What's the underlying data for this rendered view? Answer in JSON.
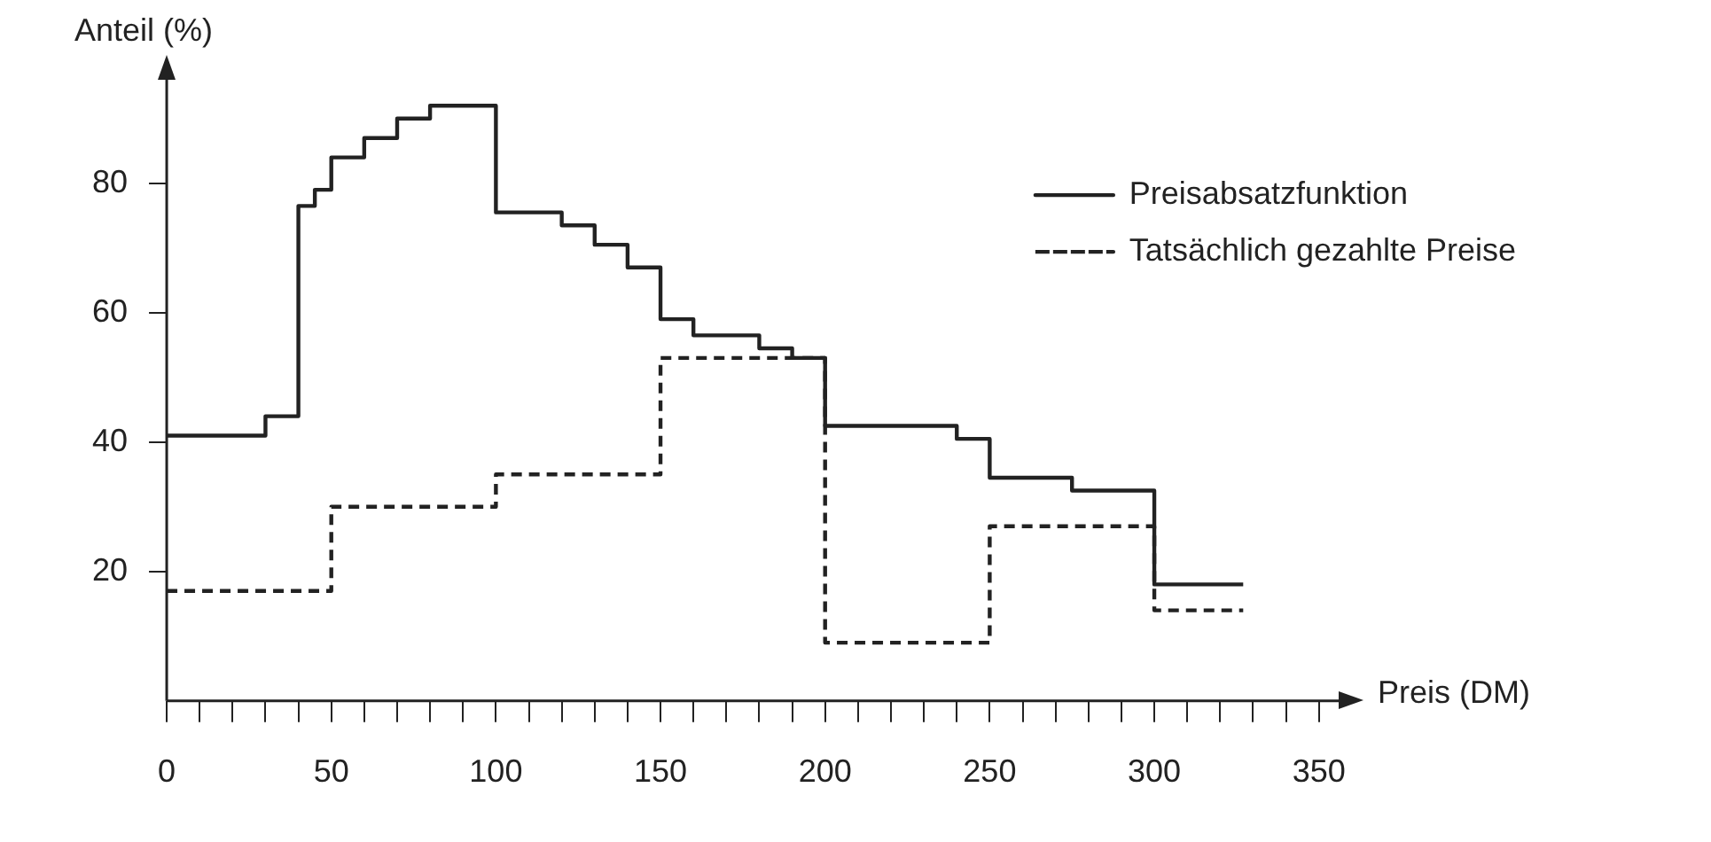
{
  "chart_data": {
    "type": "step",
    "xlabel": "Preis (DM)",
    "ylabel": "Anteil (%)",
    "xlim": [
      0,
      356
    ],
    "ylim": [
      0,
      96
    ],
    "xticks": [
      0,
      {
        "value": 10,
        "label": null
      },
      {
        "value": 20,
        "label": null
      },
      {
        "value": 30,
        "label": null
      },
      {
        "value": 40,
        "label": null
      },
      50,
      {
        "value": 60,
        "label": null
      },
      {
        "value": 70,
        "label": null
      },
      {
        "value": 80,
        "label": null
      },
      {
        "value": 90,
        "label": null
      },
      100,
      {
        "value": 110,
        "label": null
      },
      {
        "value": 120,
        "label": null
      },
      {
        "value": 130,
        "label": null
      },
      {
        "value": 140,
        "label": null
      },
      150,
      {
        "value": 160,
        "label": null
      },
      {
        "value": 170,
        "label": null
      },
      {
        "value": 180,
        "label": null
      },
      {
        "value": 190,
        "label": null
      },
      200,
      {
        "value": 210,
        "label": null
      },
      {
        "value": 220,
        "label": null
      },
      {
        "value": 230,
        "label": null
      },
      {
        "value": 240,
        "label": null
      },
      250,
      {
        "value": 260,
        "label": null
      },
      {
        "value": 270,
        "label": null
      },
      {
        "value": 280,
        "label": null
      },
      {
        "value": 290,
        "label": null
      },
      300,
      {
        "value": 310,
        "label": null
      },
      {
        "value": 320,
        "label": null
      },
      {
        "value": 330,
        "label": null
      },
      {
        "value": 340,
        "label": null
      },
      350
    ],
    "yticks": [
      20,
      40,
      60,
      80
    ],
    "grid": false,
    "legend": "top right",
    "marker": "none",
    "series": [
      {
        "name": "Preisabsatzfunktion",
        "color": "#222222",
        "line_style": "solid",
        "x": [
          0,
          30,
          40,
          45,
          50,
          60,
          70,
          80,
          100,
          120,
          130,
          140,
          150,
          160,
          180,
          190,
          200,
          240,
          250,
          275,
          300,
          327
        ],
        "values": [
          41,
          44,
          76.5,
          79,
          84,
          87,
          90,
          92,
          75.5,
          73.5,
          70.5,
          67,
          59,
          56.5,
          54.5,
          53,
          42.5,
          40.5,
          34.5,
          32.5,
          18,
          18
        ]
      },
      {
        "name": "Tatsächlich gezahlte Preise",
        "color": "#222222",
        "line_style": "dashed",
        "x": [
          0,
          50,
          100,
          150,
          200,
          250,
          300,
          327
        ],
        "values": [
          17,
          30,
          35,
          53,
          9,
          27,
          14,
          14
        ]
      }
    ]
  }
}
